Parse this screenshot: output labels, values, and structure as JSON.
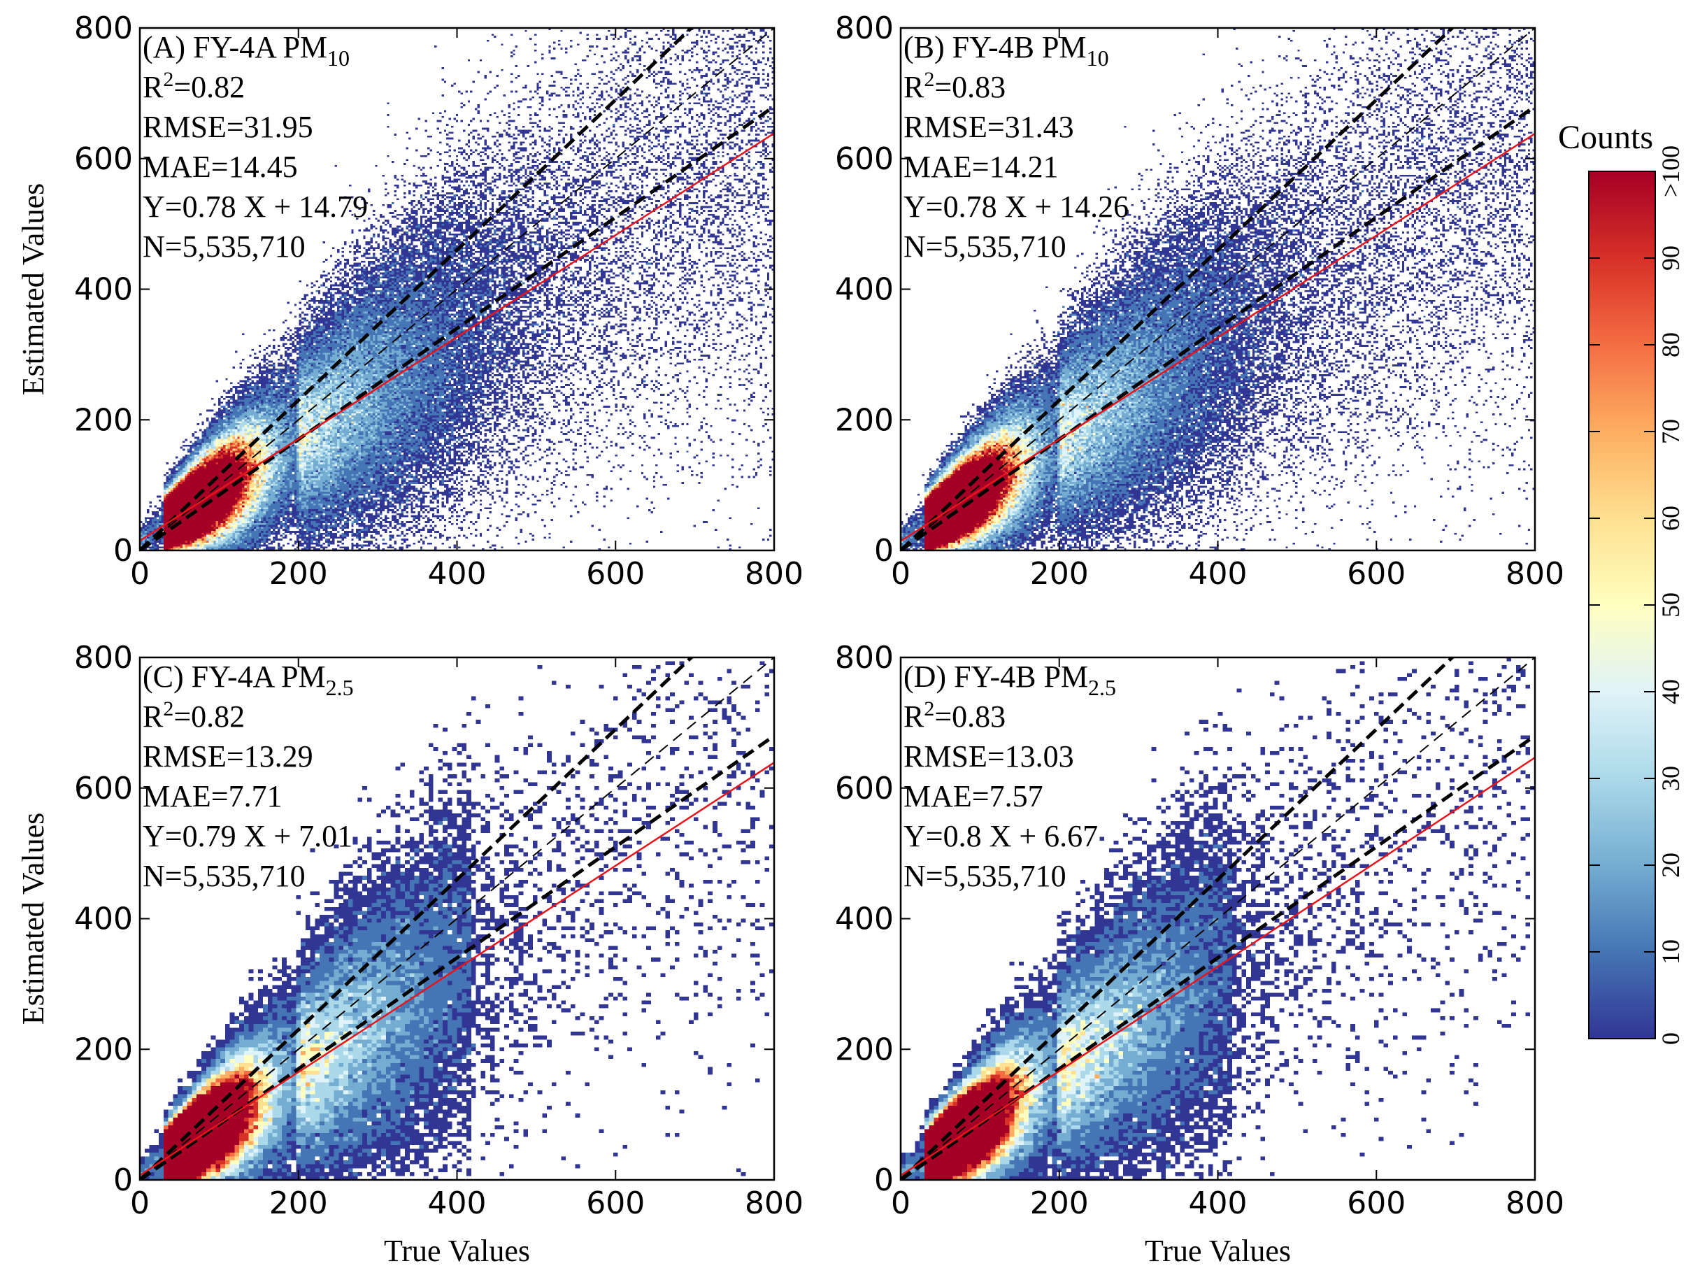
{
  "chart_data": [
    {
      "type": "scatter",
      "subtype": "density-heatmap",
      "panel": "A",
      "title_main": "(A) FY-4A PM",
      "title_sub": "10",
      "r2_label": "R",
      "r2_value": "=0.82",
      "rmse": "RMSE=31.95",
      "mae": "MAE=14.45",
      "equation": "Y=0.78 X + 14.79",
      "n": "N=5,535,710",
      "slope": 0.78,
      "intercept": 14.79,
      "spread": 0.29,
      "kind": "pm10",
      "xlabel": "",
      "ylabel": "Estimated Values",
      "xlim": [
        0,
        800
      ],
      "ylim": [
        0,
        800
      ],
      "xticks": [
        "0",
        "200",
        "400",
        "600",
        "800"
      ],
      "yticks": [
        "0",
        "200",
        "400",
        "600",
        "800"
      ]
    },
    {
      "type": "scatter",
      "subtype": "density-heatmap",
      "panel": "B",
      "title_main": "(B) FY-4B PM",
      "title_sub": "10",
      "r2_label": "R",
      "r2_value": "=0.83",
      "rmse": "RMSE=31.43",
      "mae": "MAE=14.21",
      "equation": "Y=0.78 X + 14.26",
      "n": "N=5,535,710",
      "slope": 0.78,
      "intercept": 14.26,
      "spread": 0.28,
      "kind": "pm10",
      "xlabel": "",
      "ylabel": "",
      "xlim": [
        0,
        800
      ],
      "ylim": [
        0,
        800
      ],
      "xticks": [
        "0",
        "200",
        "400",
        "600",
        "800"
      ],
      "yticks": [
        "0",
        "200",
        "400",
        "600",
        "800"
      ]
    },
    {
      "type": "scatter",
      "subtype": "density-heatmap",
      "panel": "C",
      "title_main": "(C) FY-4A PM",
      "title_sub": "2.5",
      "r2_label": "R",
      "r2_value": "=0.82",
      "rmse": "RMSE=13.29",
      "mae": "MAE=7.71",
      "equation": "Y=0.79 X + 7.01",
      "n": "N=5,535,710",
      "slope": 0.79,
      "intercept": 7.01,
      "spread": 0.3,
      "kind": "pm25",
      "xlabel": "True Values",
      "ylabel": "Estimated Values",
      "xlim": [
        0,
        800
      ],
      "ylim": [
        0,
        800
      ],
      "xticks": [
        "0",
        "200",
        "400",
        "600",
        "800"
      ],
      "yticks": [
        "0",
        "200",
        "400",
        "600",
        "800"
      ]
    },
    {
      "type": "scatter",
      "subtype": "density-heatmap",
      "panel": "D",
      "title_main": "(D) FY-4B PM",
      "title_sub": "2.5",
      "r2_label": "R",
      "r2_value": "=0.83",
      "rmse": "RMSE=13.03",
      "mae": "MAE=7.57",
      "equation": "Y=0.8 X + 6.67",
      "n": "N=5,535,710",
      "slope": 0.8,
      "intercept": 6.67,
      "spread": 0.29,
      "kind": "pm25",
      "xlabel": "True Values",
      "ylabel": "",
      "xlim": [
        0,
        800
      ],
      "ylim": [
        0,
        800
      ],
      "xticks": [
        "0",
        "200",
        "400",
        "600",
        "800"
      ],
      "yticks": [
        "0",
        "200",
        "400",
        "600",
        "800"
      ]
    }
  ],
  "reference_lines": {
    "one_to_one_slope": 1,
    "upper_bound_slope": 1.15,
    "lower_bound_slope": 0.85,
    "fit_color": "#e8141c",
    "reference_color": "#000000"
  },
  "colorbar": {
    "title": "Counts",
    "min": 0,
    "max": 100,
    "ticks": [
      "0",
      "10",
      "20",
      "30",
      "40",
      "50",
      "60",
      "70",
      "80",
      "90",
      ">100"
    ],
    "colors": [
      "#313695",
      "#4575b4",
      "#74add1",
      "#abd9e9",
      "#e0f3f8",
      "#ffffbf",
      "#fee090",
      "#fdae61",
      "#f46d43",
      "#d73027",
      "#a50026"
    ]
  }
}
